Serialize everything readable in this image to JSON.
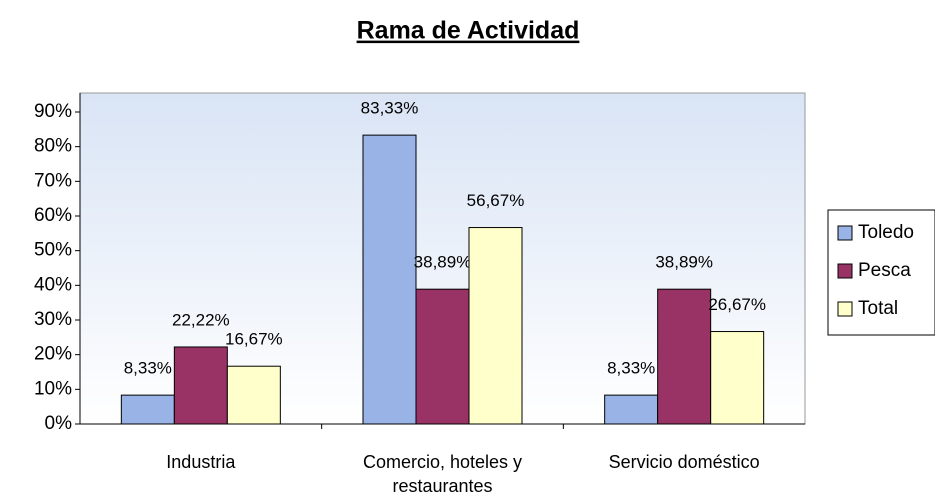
{
  "chart_data": {
    "type": "bar",
    "title": "Rama de Actividad",
    "categories": [
      "Industria",
      "Comercio, hoteles y restaurantes",
      "Servicio doméstico"
    ],
    "series": [
      {
        "name": "Toledo",
        "color": "#99b3e6",
        "values": [
          8.33,
          83.33,
          8.33
        ],
        "value_labels": [
          "8,33%",
          "83,33%",
          "8,33%"
        ]
      },
      {
        "name": "Pesca",
        "color": "#993366",
        "values": [
          22.22,
          38.89,
          38.89
        ],
        "value_labels": [
          "22,22%",
          "38,89%",
          "38,89%"
        ]
      },
      {
        "name": "Total",
        "color": "#ffffcc",
        "values": [
          16.67,
          56.67,
          26.67
        ],
        "value_labels": [
          "16,67%",
          "56,67%",
          "26,67%"
        ]
      }
    ],
    "ylim": [
      0,
      90
    ],
    "yticks": [
      {
        "value": 0,
        "label": "0%"
      },
      {
        "value": 10,
        "label": "10%"
      },
      {
        "value": 20,
        "label": "20%"
      },
      {
        "value": 30,
        "label": "30%"
      },
      {
        "value": 40,
        "label": "40%"
      },
      {
        "value": 50,
        "label": "50%"
      },
      {
        "value": 60,
        "label": "60%"
      },
      {
        "value": 70,
        "label": "70%"
      },
      {
        "value": 80,
        "label": "80%"
      },
      {
        "value": 90,
        "label": "90%"
      }
    ],
    "legend": "right"
  }
}
